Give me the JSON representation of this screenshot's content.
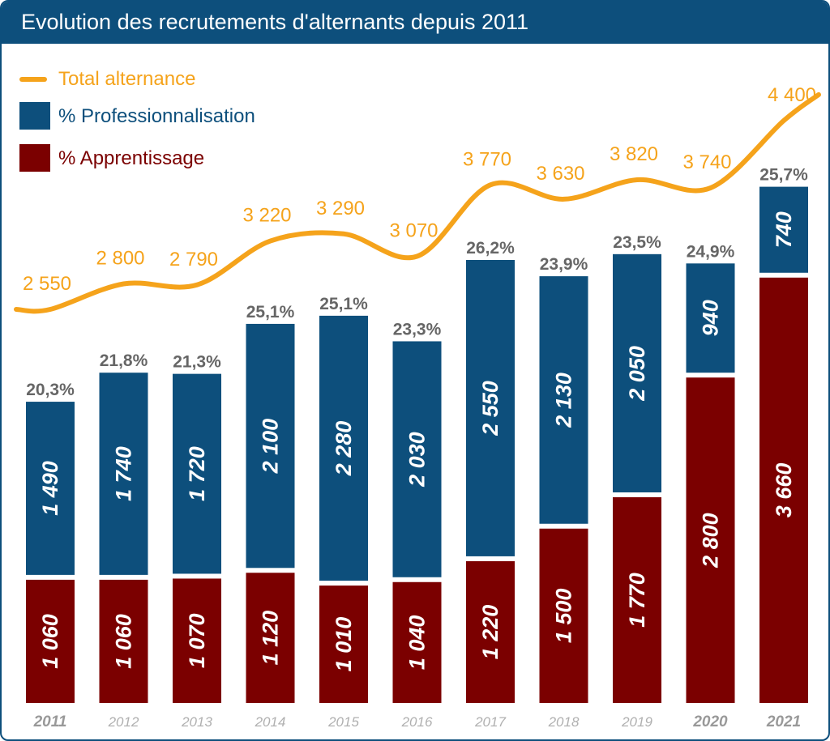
{
  "title": "Evolution des recrutements d'alternants depuis 2011",
  "legend": {
    "total": "Total alternance",
    "pro": "% Professionnalisation",
    "app": "% Apprentissage"
  },
  "colors": {
    "header": "#0d4f7c",
    "total": "#f5a31b",
    "pro": "#0d4f7c",
    "app": "#7b0000",
    "pct": "#666666",
    "year": "#b0b0b0",
    "year_bold": "#999999"
  },
  "chart_data": {
    "type": "bar",
    "stacked": true,
    "categories": [
      "2011",
      "2012",
      "2013",
      "2014",
      "2015",
      "2016",
      "2017",
      "2018",
      "2019",
      "2020",
      "2021"
    ],
    "series": [
      {
        "name": "% Apprentissage",
        "values": [
          1060,
          1060,
          1070,
          1120,
          1010,
          1040,
          1220,
          1500,
          1770,
          2800,
          3660
        ]
      },
      {
        "name": "% Professionnalisation",
        "values": [
          1490,
          1740,
          1720,
          2100,
          2280,
          2030,
          2550,
          2130,
          2050,
          940,
          740
        ]
      }
    ],
    "value_labels": {
      "app": [
        "1 060",
        "1 060",
        "1 070",
        "1 120",
        "1 010",
        "1 040",
        "1 220",
        "1 500",
        "1 770",
        "2 800",
        "3 660"
      ],
      "pro": [
        "1 490",
        "1 740",
        "1 720",
        "2 100",
        "2 280",
        "2 030",
        "2 550",
        "2 130",
        "2 050",
        "940",
        "740"
      ]
    },
    "pro_share_labels": [
      "20,3%",
      "21,8%",
      "21,3%",
      "25,1%",
      "25,1%",
      "23,3%",
      "26,2%",
      "23,9%",
      "23,5%",
      "24,9%",
      "25,7%"
    ],
    "line": {
      "name": "Total alternance",
      "values": [
        2550,
        2800,
        2790,
        3220,
        3290,
        3070,
        3770,
        3630,
        3820,
        3740,
        4400
      ],
      "labels": [
        "2 550",
        "2 800",
        "2 790",
        "3 220",
        "3 290",
        "3 070",
        "3 770",
        "3 630",
        "3 820",
        "3 740",
        "4 400"
      ]
    },
    "bold_years": [
      "2011",
      "2020",
      "2021"
    ],
    "grid": false,
    "legend_position": "top-left"
  }
}
